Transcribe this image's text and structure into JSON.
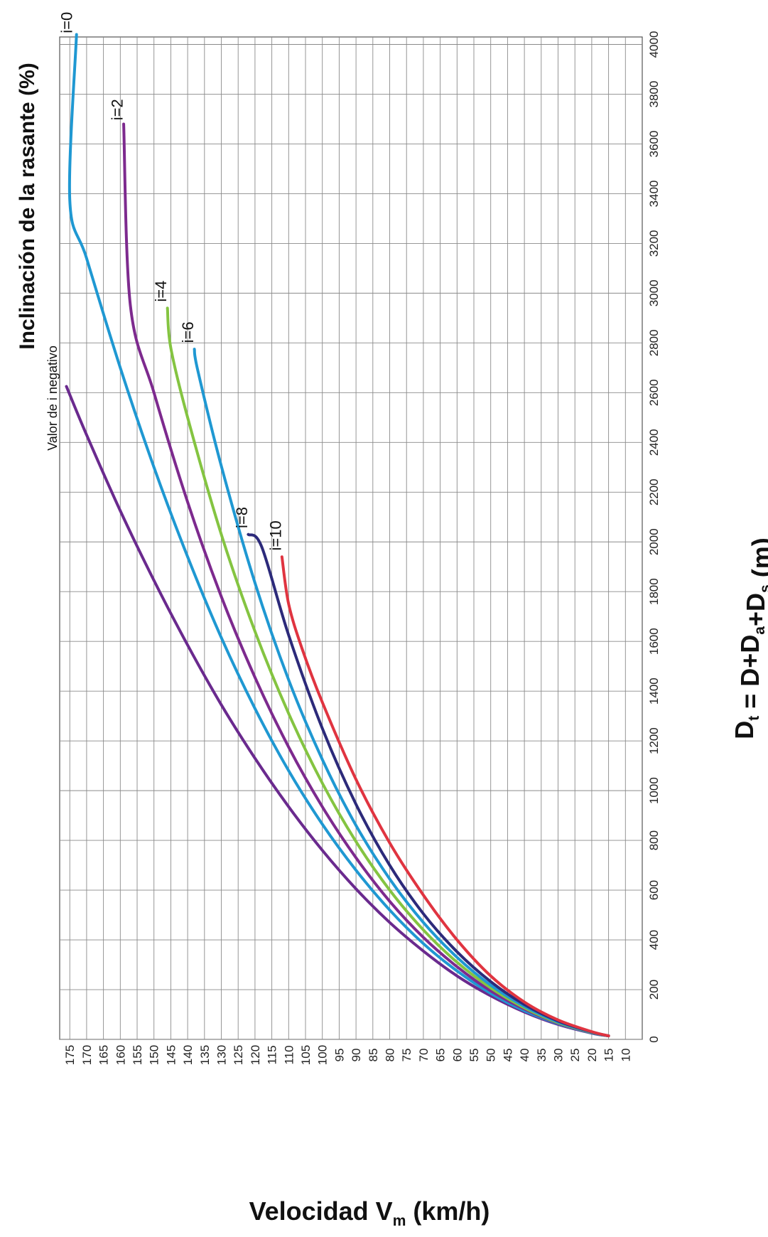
{
  "chart_data": {
    "type": "line",
    "title": "Inclinación de la rasante (%)",
    "annotation": "Valor de i negativo",
    "xlabel": "Velocidad V",
    "xlabel_sub": "m",
    "xlabel_unit": " (km/h)",
    "ylabel_parts": [
      {
        "t": "D",
        "sub": false
      },
      {
        "t": "t",
        "sub": true
      },
      {
        "t": " = D+D",
        "sub": false
      },
      {
        "t": "a",
        "sub": true
      },
      {
        "t": "+D",
        "sub": false
      },
      {
        "t": "s",
        "sub": true
      },
      {
        "t": " (m)",
        "sub": false
      }
    ],
    "x_ticks": [
      10,
      15,
      20,
      25,
      30,
      35,
      40,
      45,
      50,
      55,
      60,
      65,
      70,
      75,
      80,
      85,
      90,
      95,
      100,
      105,
      110,
      115,
      120,
      125,
      130,
      135,
      140,
      145,
      150,
      155,
      160,
      165,
      170,
      175
    ],
    "y_ticks": [
      0,
      200,
      400,
      600,
      800,
      1000,
      1200,
      1400,
      1600,
      1800,
      2000,
      2200,
      2400,
      2600,
      2800,
      3000,
      3200,
      3400,
      3600,
      3800,
      4000
    ],
    "xlim": [
      5,
      178
    ],
    "ylim": [
      0,
      4030
    ],
    "grid": true,
    "series": [
      {
        "name": "",
        "color": "#6a2a8e",
        "points": [
          [
            15,
            14
          ],
          [
            20,
            25
          ],
          [
            30,
            60
          ],
          [
            40,
            110
          ],
          [
            50,
            175
          ],
          [
            60,
            255
          ],
          [
            70,
            355
          ],
          [
            80,
            470
          ],
          [
            90,
            605
          ],
          [
            100,
            760
          ],
          [
            110,
            935
          ],
          [
            120,
            1130
          ],
          [
            130,
            1345
          ],
          [
            140,
            1585
          ],
          [
            150,
            1845
          ],
          [
            160,
            2125
          ],
          [
            170,
            2430
          ],
          [
            176,
            2625
          ]
        ]
      },
      {
        "name": "i=0",
        "color": "#1f98d2",
        "points": [
          [
            15,
            14
          ],
          [
            20,
            26
          ],
          [
            30,
            63
          ],
          [
            40,
            115
          ],
          [
            50,
            185
          ],
          [
            60,
            275
          ],
          [
            70,
            385
          ],
          [
            80,
            520
          ],
          [
            90,
            680
          ],
          [
            100,
            865
          ],
          [
            110,
            1080
          ],
          [
            120,
            1330
          ],
          [
            130,
            1615
          ],
          [
            140,
            1940
          ],
          [
            150,
            2300
          ],
          [
            160,
            2700
          ],
          [
            170,
            3140
          ],
          [
            175,
            3375
          ],
          [
            173,
            4040
          ]
        ]
      },
      {
        "name": "i=2",
        "color": "#7d2a8e",
        "points": [
          [
            15,
            14
          ],
          [
            20,
            27
          ],
          [
            30,
            65
          ],
          [
            40,
            122
          ],
          [
            50,
            195
          ],
          [
            60,
            292
          ],
          [
            70,
            410
          ],
          [
            80,
            555
          ],
          [
            90,
            730
          ],
          [
            100,
            935
          ],
          [
            110,
            1175
          ],
          [
            120,
            1455
          ],
          [
            130,
            1780
          ],
          [
            140,
            2160
          ],
          [
            150,
            2600
          ],
          [
            157,
            2950
          ],
          [
            159,
            3680
          ]
        ]
      },
      {
        "name": "i=4",
        "color": "#84c441",
        "points": [
          [
            15,
            14
          ],
          [
            20,
            28
          ],
          [
            30,
            67
          ],
          [
            40,
            127
          ],
          [
            50,
            207
          ],
          [
            60,
            310
          ],
          [
            70,
            440
          ],
          [
            80,
            600
          ],
          [
            90,
            795
          ],
          [
            100,
            1030
          ],
          [
            110,
            1310
          ],
          [
            120,
            1640
          ],
          [
            130,
            2030
          ],
          [
            140,
            2500
          ],
          [
            145,
            2780
          ],
          [
            146,
            2940
          ]
        ]
      },
      {
        "name": "i=6",
        "color": "#1f98d2",
        "points": [
          [
            15,
            14
          ],
          [
            20,
            29
          ],
          [
            30,
            70
          ],
          [
            40,
            133
          ],
          [
            50,
            218
          ],
          [
            60,
            330
          ],
          [
            70,
            470
          ],
          [
            80,
            645
          ],
          [
            90,
            860
          ],
          [
            100,
            1125
          ],
          [
            110,
            1445
          ],
          [
            120,
            1835
          ],
          [
            130,
            2305
          ],
          [
            137,
            2690
          ],
          [
            138,
            2775
          ]
        ]
      },
      {
        "name": "i=8",
        "color": "#2c2a7a",
        "points": [
          [
            15,
            14
          ],
          [
            20,
            30
          ],
          [
            30,
            74
          ],
          [
            40,
            140
          ],
          [
            50,
            232
          ],
          [
            60,
            352
          ],
          [
            70,
            505
          ],
          [
            80,
            700
          ],
          [
            90,
            945
          ],
          [
            100,
            1250
          ],
          [
            110,
            1625
          ],
          [
            118,
            1980
          ],
          [
            122,
            2030
          ]
        ]
      },
      {
        "name": "i=10",
        "color": "#e03440",
        "points": [
          [
            15,
            14
          ],
          [
            20,
            31
          ],
          [
            30,
            78
          ],
          [
            40,
            150
          ],
          [
            50,
            255
          ],
          [
            60,
            400
          ],
          [
            70,
            580
          ],
          [
            80,
            790
          ],
          [
            90,
            1045
          ],
          [
            100,
            1355
          ],
          [
            106,
            1570
          ],
          [
            110,
            1750
          ],
          [
            112,
            1940
          ]
        ]
      }
    ],
    "series_labels": [
      {
        "text": "i=0",
        "x": 176,
        "y": 4045
      },
      {
        "text": "i=2",
        "x": 161,
        "y": 3695
      },
      {
        "text": "i=4",
        "x": 148,
        "y": 2965
      },
      {
        "text": "i=6",
        "x": 140,
        "y": 2800
      },
      {
        "text": "i=8",
        "x": 124,
        "y": 2055
      },
      {
        "text": "i=10",
        "x": 114,
        "y": 1965
      }
    ]
  }
}
